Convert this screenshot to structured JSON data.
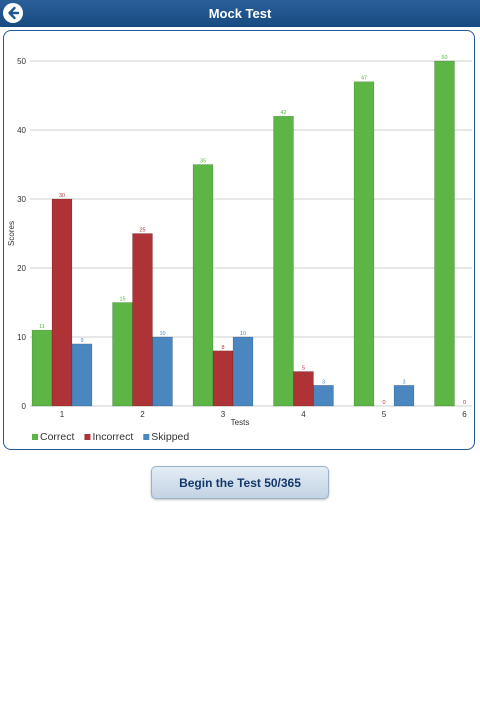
{
  "header": {
    "title": "Mock Test",
    "back_icon": "back-arrow-icon"
  },
  "colors": {
    "correct": "#5cb545",
    "incorrect": "#ad3336",
    "skipped": "#4a87c1",
    "header_bg": "#1e5590"
  },
  "chart_data": {
    "type": "bar",
    "categories": [
      "1",
      "2",
      "3",
      "4",
      "5",
      "6"
    ],
    "series": [
      {
        "name": "Correct",
        "values": [
          11,
          15,
          35,
          42,
          47,
          50
        ]
      },
      {
        "name": "Incorrect",
        "values": [
          30,
          25,
          8,
          5,
          0,
          0
        ]
      },
      {
        "name": "Skipped",
        "values": [
          9,
          10,
          10,
          3,
          3,
          null
        ]
      }
    ],
    "xlabel": "Tests",
    "ylabel": "Scores",
    "ylim": [
      0,
      50
    ],
    "yticks": [
      0,
      10,
      20,
      30,
      40,
      50
    ],
    "grid": true,
    "legend_position": "bottom-left"
  },
  "actions": {
    "begin_label": "Begin the Test 50/365"
  }
}
